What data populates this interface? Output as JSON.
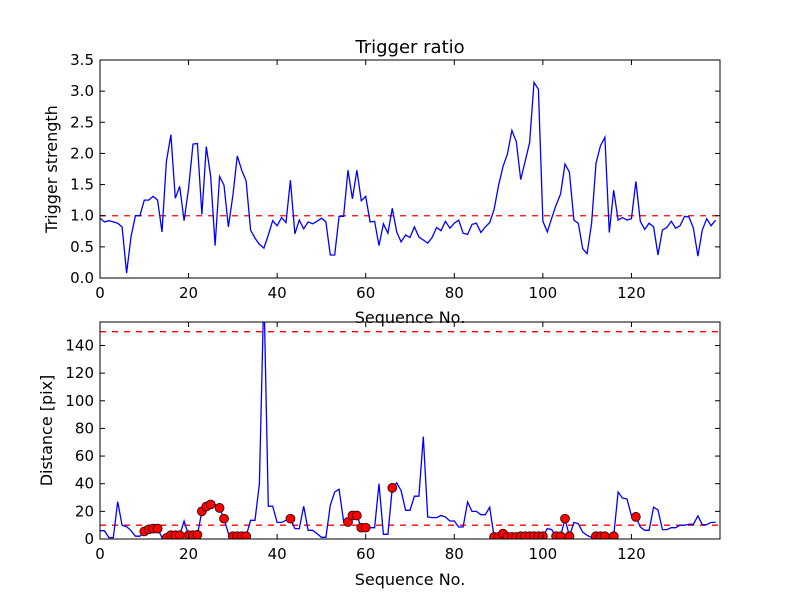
{
  "chart_data": [
    {
      "type": "line",
      "title": "Trigger ratio",
      "xlabel": "Sequence No.",
      "ylabel": "Trigger strength",
      "xlim": [
        0,
        140
      ],
      "ylim": [
        0,
        3.5
      ],
      "xticks": [
        0,
        20,
        40,
        60,
        80,
        100,
        120
      ],
      "xtick_labels": [
        "0",
        "20",
        "40",
        "60",
        "80",
        "100",
        "120"
      ],
      "yticks": [
        0,
        0.5,
        1.0,
        1.5,
        2.0,
        2.5,
        3.0,
        3.5
      ],
      "ytick_labels": [
        "0.0",
        "0.5",
        "1.0",
        "1.5",
        "2.0",
        "2.5",
        "3.0",
        "3.5"
      ],
      "grid": false,
      "series": [
        {
          "name": "trigger strength",
          "color": "#0000ff",
          "values": [
            0.96,
            0.9,
            0.92,
            0.9,
            0.88,
            0.82,
            0.08,
            0.66,
            1.0,
            1.0,
            1.25,
            1.25,
            1.31,
            1.25,
            0.74,
            1.87,
            2.3,
            1.28,
            1.47,
            0.92,
            1.44,
            2.15,
            2.16,
            1.02,
            2.11,
            1.63,
            0.52,
            1.63,
            1.49,
            0.82,
            1.33,
            1.96,
            1.73,
            1.56,
            0.77,
            0.64,
            0.54,
            0.48,
            0.69,
            0.92,
            0.84,
            0.97,
            0.89,
            1.57,
            0.71,
            0.93,
            0.79,
            0.9,
            0.87,
            0.91,
            0.96,
            0.9,
            0.37,
            0.37,
            0.99,
            0.99,
            1.73,
            1.27,
            1.73,
            1.24,
            1.31,
            0.9,
            0.91,
            0.52,
            0.87,
            0.72,
            1.12,
            0.74,
            0.58,
            0.69,
            0.65,
            0.82,
            0.66,
            0.61,
            0.56,
            0.65,
            0.81,
            0.76,
            0.91,
            0.8,
            0.88,
            0.93,
            0.72,
            0.7,
            0.86,
            0.88,
            0.73,
            0.82,
            0.89,
            1.1,
            1.49,
            1.79,
            1.99,
            2.37,
            2.19,
            1.58,
            1.87,
            2.17,
            3.14,
            3.03,
            0.91,
            0.74,
            0.96,
            1.17,
            1.35,
            1.83,
            1.7,
            0.93,
            0.88,
            0.47,
            0.39,
            0.88,
            1.84,
            2.12,
            2.26,
            0.73,
            1.41,
            0.93,
            0.97,
            0.93,
            0.95,
            1.55,
            0.91,
            0.78,
            0.88,
            0.82,
            0.37,
            0.77,
            0.81,
            0.91,
            0.8,
            0.84,
            0.99,
            0.98,
            0.8,
            0.35,
            0.77,
            0.95,
            0.84,
            0.93
          ]
        }
      ],
      "hlines": [
        {
          "y": 1.0,
          "color": "#ff0000",
          "style": "dashed"
        }
      ]
    },
    {
      "type": "line",
      "title": "",
      "xlabel": "Sequence No.",
      "ylabel": "Distance [pix]",
      "xlim": [
        0,
        140
      ],
      "ylim": [
        0,
        157
      ],
      "xticks": [
        0,
        20,
        40,
        60,
        80,
        100,
        120
      ],
      "xtick_labels": [
        "0",
        "20",
        "40",
        "60",
        "80",
        "100",
        "120"
      ],
      "yticks": [
        0,
        20,
        40,
        60,
        80,
        100,
        120,
        140
      ],
      "ytick_labels": [
        "0",
        "20",
        "40",
        "60",
        "80",
        "100",
        "120",
        "140"
      ],
      "grid": false,
      "series": [
        {
          "name": "distance",
          "color": "#0000ff",
          "values": [
            6,
            6,
            1,
            1,
            27,
            10,
            9,
            6,
            2,
            2,
            5.5,
            7,
            7.5,
            7.5,
            1,
            0.7,
            2.7,
            2.7,
            2.7,
            13,
            2.7,
            2.7,
            3,
            20,
            23.5,
            25,
            25,
            22.5,
            14.7,
            4,
            2,
            2,
            2,
            2,
            13.5,
            13.5,
            40,
            180,
            23.7,
            23.7,
            12,
            12,
            13.5,
            14.7,
            7.5,
            7.5,
            23.7,
            6.3,
            6.3,
            3.9,
            1.2,
            1.2,
            24.4,
            34,
            36,
            12.8,
            12.3,
            17,
            17,
            8.2,
            8.2,
            8.2,
            8.2,
            40,
            3.4,
            3.4,
            37,
            40.6,
            35,
            20.8,
            20.8,
            31,
            31,
            74,
            16,
            15.5,
            15.5,
            17,
            16,
            13,
            13,
            8.7,
            8.7,
            26.8,
            20,
            20,
            17.6,
            17.6,
            23,
            1.5,
            1.5,
            3.9,
            1.5,
            1.5,
            1.5,
            2,
            2,
            2,
            2,
            2,
            2,
            7.5,
            6.8,
            2,
            2,
            14.7,
            2,
            12,
            11,
            5,
            2.7,
            1,
            2,
            2,
            2,
            2,
            2,
            34,
            29.5,
            29,
            17,
            16,
            8.7,
            6.3,
            6.3,
            23,
            21,
            6.8,
            6.8,
            8.2,
            8.2,
            10,
            10,
            10.6,
            10.6,
            16.7,
            10.4,
            10.4,
            12,
            12
          ]
        },
        {
          "name": "flagged points",
          "type": "scatter",
          "color": "#ff0000",
          "edgecolor": "#000000",
          "indices": [
            10,
            11,
            12,
            13,
            15,
            16,
            17,
            18,
            20,
            21,
            22,
            23,
            24,
            25,
            27,
            28,
            30,
            31,
            32,
            33,
            43,
            56,
            57,
            58,
            59,
            60,
            66,
            89,
            90,
            91,
            92,
            93,
            94,
            95,
            96,
            97,
            98,
            99,
            100,
            103,
            104,
            105,
            106,
            112,
            113,
            114,
            116,
            121
          ]
        }
      ],
      "hlines": [
        {
          "y": 10,
          "color": "#ff0000",
          "style": "dashed"
        },
        {
          "y": 150,
          "color": "#ff0000",
          "style": "dashed"
        }
      ]
    }
  ]
}
